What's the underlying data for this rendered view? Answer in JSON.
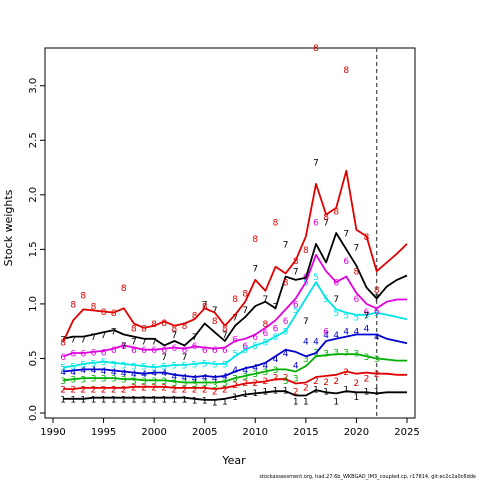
{
  "chart_data": {
    "type": "line",
    "title": "",
    "xlabel": "Year",
    "ylabel": "Stock weights",
    "xlim": [
      1990,
      2025
    ],
    "ylim": [
      0,
      3.3
    ],
    "xticks": [
      1990,
      1995,
      2000,
      2005,
      2010,
      2015,
      2020,
      2025
    ],
    "yticks": [
      0.0,
      0.5,
      1.0,
      1.5,
      2.0,
      2.5,
      3.0
    ],
    "xtick_labels": [
      "1990",
      "1995",
      "2000",
      "2005",
      "2010",
      "2015",
      "2020",
      "2025"
    ],
    "ytick_labels": [
      "0.0",
      "0.5",
      "1.0",
      "1.5",
      "2.0",
      "2.5",
      "3.0"
    ],
    "vline": 2022,
    "footnote": "stockassessment.org, had.27.6b_WKBGAD_IM3_coupled.cp, r17814, git:ec2c2a0c6dde",
    "years": [
      1991,
      1992,
      1993,
      1994,
      1995,
      1996,
      1997,
      1998,
      1999,
      2000,
      2001,
      2002,
      2003,
      2004,
      2005,
      2006,
      2007,
      2008,
      2009,
      2010,
      2011,
      2012,
      2013,
      2014,
      2015,
      2016,
      2017,
      2018,
      2019,
      2020,
      2021,
      2022
    ],
    "series": [
      {
        "name": "1",
        "label": "1",
        "color": "#000000",
        "points": [
          0.13,
          0.13,
          0.13,
          0.13,
          0.13,
          0.13,
          0.13,
          0.13,
          0.13,
          0.13,
          0.13,
          0.13,
          0.13,
          0.12,
          0.12,
          0.1,
          0.11,
          0.15,
          0.18,
          0.19,
          0.2,
          0.21,
          0.21,
          0.11,
          0.11,
          0.22,
          0.2,
          0.11,
          0.22,
          0.15,
          0.2,
          0.2
        ],
        "line": [
          0.13,
          0.13,
          0.13,
          0.14,
          0.14,
          0.14,
          0.14,
          0.14,
          0.14,
          0.14,
          0.14,
          0.14,
          0.14,
          0.13,
          0.12,
          0.12,
          0.13,
          0.15,
          0.17,
          0.18,
          0.19,
          0.2,
          0.2,
          0.16,
          0.16,
          0.21,
          0.19,
          0.18,
          0.2,
          0.19,
          0.19,
          0.18,
          0.19,
          0.19,
          0.19
        ]
      },
      {
        "name": "2",
        "label": "2",
        "color": "#DF0000",
        "points": [
          0.22,
          0.22,
          0.22,
          0.22,
          0.22,
          0.22,
          0.22,
          0.24,
          0.24,
          0.24,
          0.24,
          0.22,
          0.22,
          0.22,
          0.22,
          0.2,
          0.22,
          0.26,
          0.28,
          0.28,
          0.3,
          0.33,
          0.33,
          0.2,
          0.24,
          0.3,
          0.29,
          0.3,
          0.38,
          0.28,
          0.32,
          0.36
        ],
        "line": [
          0.22,
          0.22,
          0.23,
          0.23,
          0.23,
          0.23,
          0.23,
          0.24,
          0.24,
          0.24,
          0.24,
          0.23,
          0.23,
          0.23,
          0.23,
          0.22,
          0.23,
          0.25,
          0.27,
          0.28,
          0.29,
          0.31,
          0.31,
          0.27,
          0.28,
          0.33,
          0.34,
          0.35,
          0.38,
          0.36,
          0.37,
          0.36,
          0.36,
          0.35,
          0.35
        ]
      },
      {
        "name": "3",
        "label": "3",
        "color": "#00B000",
        "points": [
          0.3,
          0.31,
          0.31,
          0.32,
          0.32,
          0.32,
          0.31,
          0.3,
          0.3,
          0.3,
          0.3,
          0.28,
          0.28,
          0.27,
          0.28,
          0.26,
          0.28,
          0.32,
          0.34,
          0.36,
          0.38,
          0.4,
          0.3,
          0.32,
          0.5,
          0.56,
          0.55,
          0.56,
          0.56,
          0.55,
          0.52,
          0.5
        ],
        "line": [
          0.3,
          0.31,
          0.32,
          0.32,
          0.32,
          0.32,
          0.31,
          0.31,
          0.3,
          0.3,
          0.3,
          0.29,
          0.28,
          0.28,
          0.28,
          0.28,
          0.29,
          0.32,
          0.34,
          0.36,
          0.38,
          0.4,
          0.4,
          0.38,
          0.43,
          0.52,
          0.53,
          0.54,
          0.54,
          0.54,
          0.52,
          0.5,
          0.49,
          0.48,
          0.48
        ]
      },
      {
        "name": "4",
        "label": "4",
        "color": "#0000CF",
        "points": [
          0.38,
          0.38,
          0.4,
          0.4,
          0.39,
          0.38,
          0.37,
          0.36,
          0.36,
          0.37,
          0.37,
          0.34,
          0.33,
          0.32,
          0.33,
          0.32,
          0.34,
          0.4,
          0.4,
          0.42,
          0.44,
          0.5,
          0.55,
          0.44,
          0.66,
          0.66,
          0.72,
          0.72,
          0.75,
          0.75,
          0.78,
          0.7
        ],
        "line": [
          0.38,
          0.39,
          0.4,
          0.4,
          0.4,
          0.39,
          0.38,
          0.37,
          0.36,
          0.37,
          0.37,
          0.35,
          0.34,
          0.33,
          0.34,
          0.33,
          0.34,
          0.38,
          0.41,
          0.43,
          0.46,
          0.52,
          0.58,
          0.56,
          0.52,
          0.55,
          0.66,
          0.68,
          0.7,
          0.72,
          0.72,
          0.72,
          0.68,
          0.66,
          0.64
        ]
      },
      {
        "name": "5",
        "label": "5",
        "color": "#00E5E5",
        "points": [
          0.42,
          0.43,
          0.45,
          0.46,
          0.47,
          0.45,
          0.44,
          0.43,
          0.43,
          0.42,
          0.43,
          0.44,
          0.44,
          0.45,
          0.46,
          0.45,
          0.45,
          0.55,
          0.58,
          0.62,
          0.65,
          0.7,
          0.75,
          0.95,
          1.2,
          1.25,
          1.05,
          0.92,
          0.9,
          0.88,
          0.9,
          0.92
        ],
        "line": [
          0.42,
          0.43,
          0.45,
          0.46,
          0.47,
          0.46,
          0.45,
          0.44,
          0.43,
          0.42,
          0.43,
          0.44,
          0.44,
          0.45,
          0.46,
          0.45,
          0.45,
          0.52,
          0.58,
          0.62,
          0.65,
          0.7,
          0.75,
          0.9,
          1.05,
          1.2,
          1.05,
          0.95,
          0.92,
          0.9,
          0.9,
          0.92,
          0.9,
          0.88,
          0.86
        ]
      },
      {
        "name": "6",
        "label": "6",
        "color": "#E000E0",
        "points": [
          0.52,
          0.55,
          0.55,
          0.56,
          0.56,
          0.58,
          0.62,
          0.58,
          0.58,
          0.58,
          0.58,
          0.6,
          0.58,
          0.62,
          0.58,
          0.58,
          0.58,
          0.68,
          0.62,
          0.7,
          0.74,
          0.78,
          0.85,
          1.0,
          1.25,
          1.75,
          0.75,
          1.2,
          1.4,
          1.05,
          0.93,
          0.94
        ],
        "line": [
          0.52,
          0.55,
          0.55,
          0.56,
          0.57,
          0.59,
          0.62,
          0.6,
          0.58,
          0.58,
          0.59,
          0.6,
          0.59,
          0.61,
          0.6,
          0.59,
          0.6,
          0.66,
          0.68,
          0.72,
          0.78,
          0.85,
          0.95,
          1.05,
          1.2,
          1.45,
          1.3,
          1.2,
          1.25,
          1.1,
          1.0,
          0.96,
          1.02,
          1.04,
          1.04
        ]
      },
      {
        "name": "7",
        "label": "7",
        "color": "#000000",
        "points": [
          0.68,
          0.68,
          0.68,
          0.7,
          0.72,
          0.75,
          0.62,
          0.66,
          0.66,
          0.66,
          0.52,
          0.72,
          0.52,
          0.7,
          1.0,
          0.95,
          0.72,
          0.88,
          0.95,
          1.33,
          1.05,
          0.98,
          1.55,
          1.3,
          0.85,
          2.3,
          1.75,
          1.05,
          1.65,
          1.52,
          0.9,
          1.06
        ],
        "line": [
          0.68,
          0.7,
          0.7,
          0.72,
          0.74,
          0.76,
          0.72,
          0.7,
          0.68,
          0.68,
          0.62,
          0.66,
          0.62,
          0.7,
          0.82,
          0.74,
          0.66,
          0.8,
          0.88,
          0.98,
          1.02,
          0.96,
          1.25,
          1.22,
          1.24,
          1.55,
          1.38,
          1.65,
          1.5,
          1.35,
          1.15,
          1.05,
          1.16,
          1.22,
          1.26
        ]
      },
      {
        "name": "8",
        "label": "8",
        "color": "#DF0000",
        "points": [
          0.65,
          1.0,
          1.08,
          0.98,
          0.93,
          0.92,
          1.15,
          0.78,
          0.78,
          0.82,
          0.83,
          0.78,
          0.8,
          0.9,
          0.98,
          0.85,
          0.78,
          1.05,
          1.1,
          1.6,
          0.82,
          1.75,
          1.2,
          1.4,
          1.5,
          3.35,
          1.8,
          1.85,
          3.15,
          1.3,
          1.62,
          1.13
        ],
        "line": [
          0.65,
          0.85,
          0.95,
          0.94,
          0.93,
          0.92,
          0.96,
          0.82,
          0.78,
          0.8,
          0.84,
          0.8,
          0.82,
          0.86,
          0.96,
          0.92,
          0.8,
          0.9,
          1.02,
          1.22,
          1.12,
          1.34,
          1.28,
          1.4,
          1.62,
          2.1,
          1.82,
          1.88,
          2.22,
          1.68,
          1.62,
          1.3,
          1.38,
          1.46,
          1.55
        ]
      }
    ]
  }
}
